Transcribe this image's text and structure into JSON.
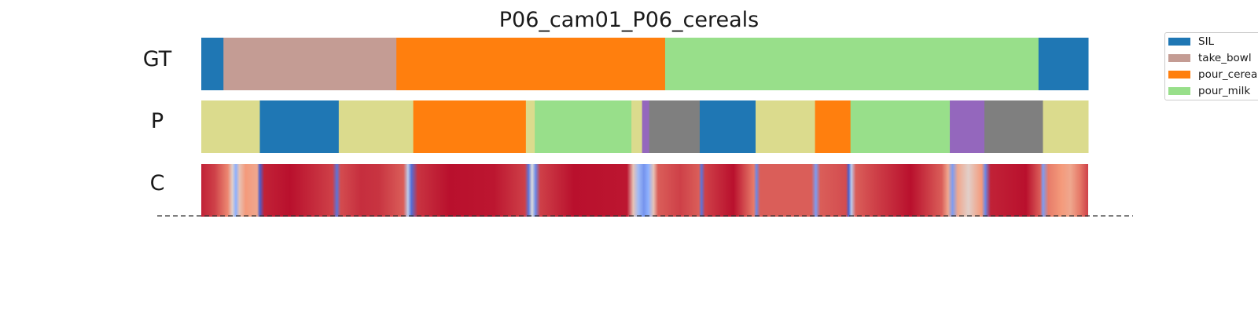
{
  "chart_data": {
    "type": "heatmap",
    "title": "P06_cam01_P06_cereals",
    "duration": 100,
    "rows": [
      {
        "label": "GT",
        "segments": [
          {
            "start": 0,
            "end": 2.5,
            "action": "SIL"
          },
          {
            "start": 2.5,
            "end": 22,
            "action": "take_bowl"
          },
          {
            "start": 22,
            "end": 52.3,
            "action": "pour_cereals"
          },
          {
            "start": 52.3,
            "end": 94.4,
            "action": "pour_milk"
          },
          {
            "start": 94.4,
            "end": 100,
            "action": "SIL"
          }
        ]
      },
      {
        "label": "P",
        "segments": [
          {
            "start": 0,
            "end": 6.6,
            "color": "#dbdb8d"
          },
          {
            "start": 6.6,
            "end": 15.5,
            "color": "#1f77b4"
          },
          {
            "start": 15.5,
            "end": 23.9,
            "color": "#dbdb8d"
          },
          {
            "start": 23.9,
            "end": 36.6,
            "color": "#ff7f0e"
          },
          {
            "start": 36.6,
            "end": 37.6,
            "color": "#dbdb8d"
          },
          {
            "start": 37.6,
            "end": 48.5,
            "color": "#98df8a"
          },
          {
            "start": 48.5,
            "end": 49.7,
            "color": "#dbdb8d"
          },
          {
            "start": 49.7,
            "end": 50.5,
            "color": "#9467bd"
          },
          {
            "start": 50.5,
            "end": 56.2,
            "color": "#7f7f7f"
          },
          {
            "start": 56.2,
            "end": 62.5,
            "color": "#1f77b4"
          },
          {
            "start": 62.5,
            "end": 69.2,
            "color": "#dbdb8d"
          },
          {
            "start": 69.2,
            "end": 73.2,
            "color": "#ff7f0e"
          },
          {
            "start": 73.2,
            "end": 84.4,
            "color": "#98df8a"
          },
          {
            "start": 84.4,
            "end": 88.3,
            "color": "#9467bd"
          },
          {
            "start": 88.3,
            "end": 94.9,
            "color": "#7f7f7f"
          },
          {
            "start": 94.9,
            "end": 100,
            "color": "#dbdb8d"
          }
        ]
      },
      {
        "label": "C",
        "colormap": "coolwarm",
        "confidence": [
          [
            0,
            0.95
          ],
          [
            1.5,
            0.9
          ],
          [
            3,
            0.78
          ],
          [
            3.5,
            0.55
          ],
          [
            3.9,
            0.25
          ],
          [
            4.3,
            0.6
          ],
          [
            5,
            0.75
          ],
          [
            6.3,
            0.7
          ],
          [
            6.6,
            0.05
          ],
          [
            7.1,
            0.95
          ],
          [
            10,
            0.98
          ],
          [
            14.8,
            0.9
          ],
          [
            15.3,
            0.1
          ],
          [
            15.7,
            0.88
          ],
          [
            18,
            0.93
          ],
          [
            20,
            0.92
          ],
          [
            22.8,
            0.85
          ],
          [
            23.3,
            0.4
          ],
          [
            23.7,
            0.08
          ],
          [
            24.4,
            0.92
          ],
          [
            28,
            0.98
          ],
          [
            33,
            0.97
          ],
          [
            36.5,
            0.9
          ],
          [
            36.9,
            0.1
          ],
          [
            37.3,
            0.5
          ],
          [
            37.7,
            0.15
          ],
          [
            38.2,
            0.9
          ],
          [
            42,
            0.98
          ],
          [
            48,
            0.97
          ],
          [
            48.7,
            0.6
          ],
          [
            49.3,
            0.3
          ],
          [
            49.9,
            0.18
          ],
          [
            50.4,
            0.25
          ],
          [
            51,
            0.6
          ],
          [
            51.5,
            0.85
          ],
          [
            54,
            0.9
          ],
          [
            56.1,
            0.85
          ],
          [
            56.4,
            0.1
          ],
          [
            56.8,
            0.9
          ],
          [
            60,
            0.98
          ],
          [
            62.3,
            0.8
          ],
          [
            62.6,
            0.15
          ],
          [
            63,
            0.85
          ],
          [
            68.8,
            0.85
          ],
          [
            69.3,
            0.2
          ],
          [
            69.8,
            0.85
          ],
          [
            72.7,
            0.88
          ],
          [
            73,
            0.05
          ],
          [
            73.3,
            0.4
          ],
          [
            73.8,
            0.85
          ],
          [
            76,
            0.9
          ],
          [
            80,
            0.98
          ],
          [
            83.5,
            0.85
          ],
          [
            84.2,
            0.7
          ],
          [
            84.7,
            0.2
          ],
          [
            85.3,
            0.7
          ],
          [
            86.5,
            0.55
          ],
          [
            88,
            0.75
          ],
          [
            88.4,
            0.15
          ],
          [
            89,
            0.95
          ],
          [
            93,
            0.98
          ],
          [
            94.6,
            0.85
          ],
          [
            94.9,
            0.2
          ],
          [
            95.5,
            0.8
          ],
          [
            97,
            0.75
          ],
          [
            98,
            0.7
          ],
          [
            99,
            0.8
          ],
          [
            100,
            0.9
          ]
        ]
      }
    ],
    "legend": {
      "placement": "top-right",
      "entries": [
        {
          "label": "SIL",
          "color": "#1f77b4"
        },
        {
          "label": "take_bowl",
          "color": "#c49c94"
        },
        {
          "label": "pour_cereals",
          "color": "#ff7f0e"
        },
        {
          "label": "pour_milk",
          "color": "#98df8a"
        }
      ]
    }
  }
}
